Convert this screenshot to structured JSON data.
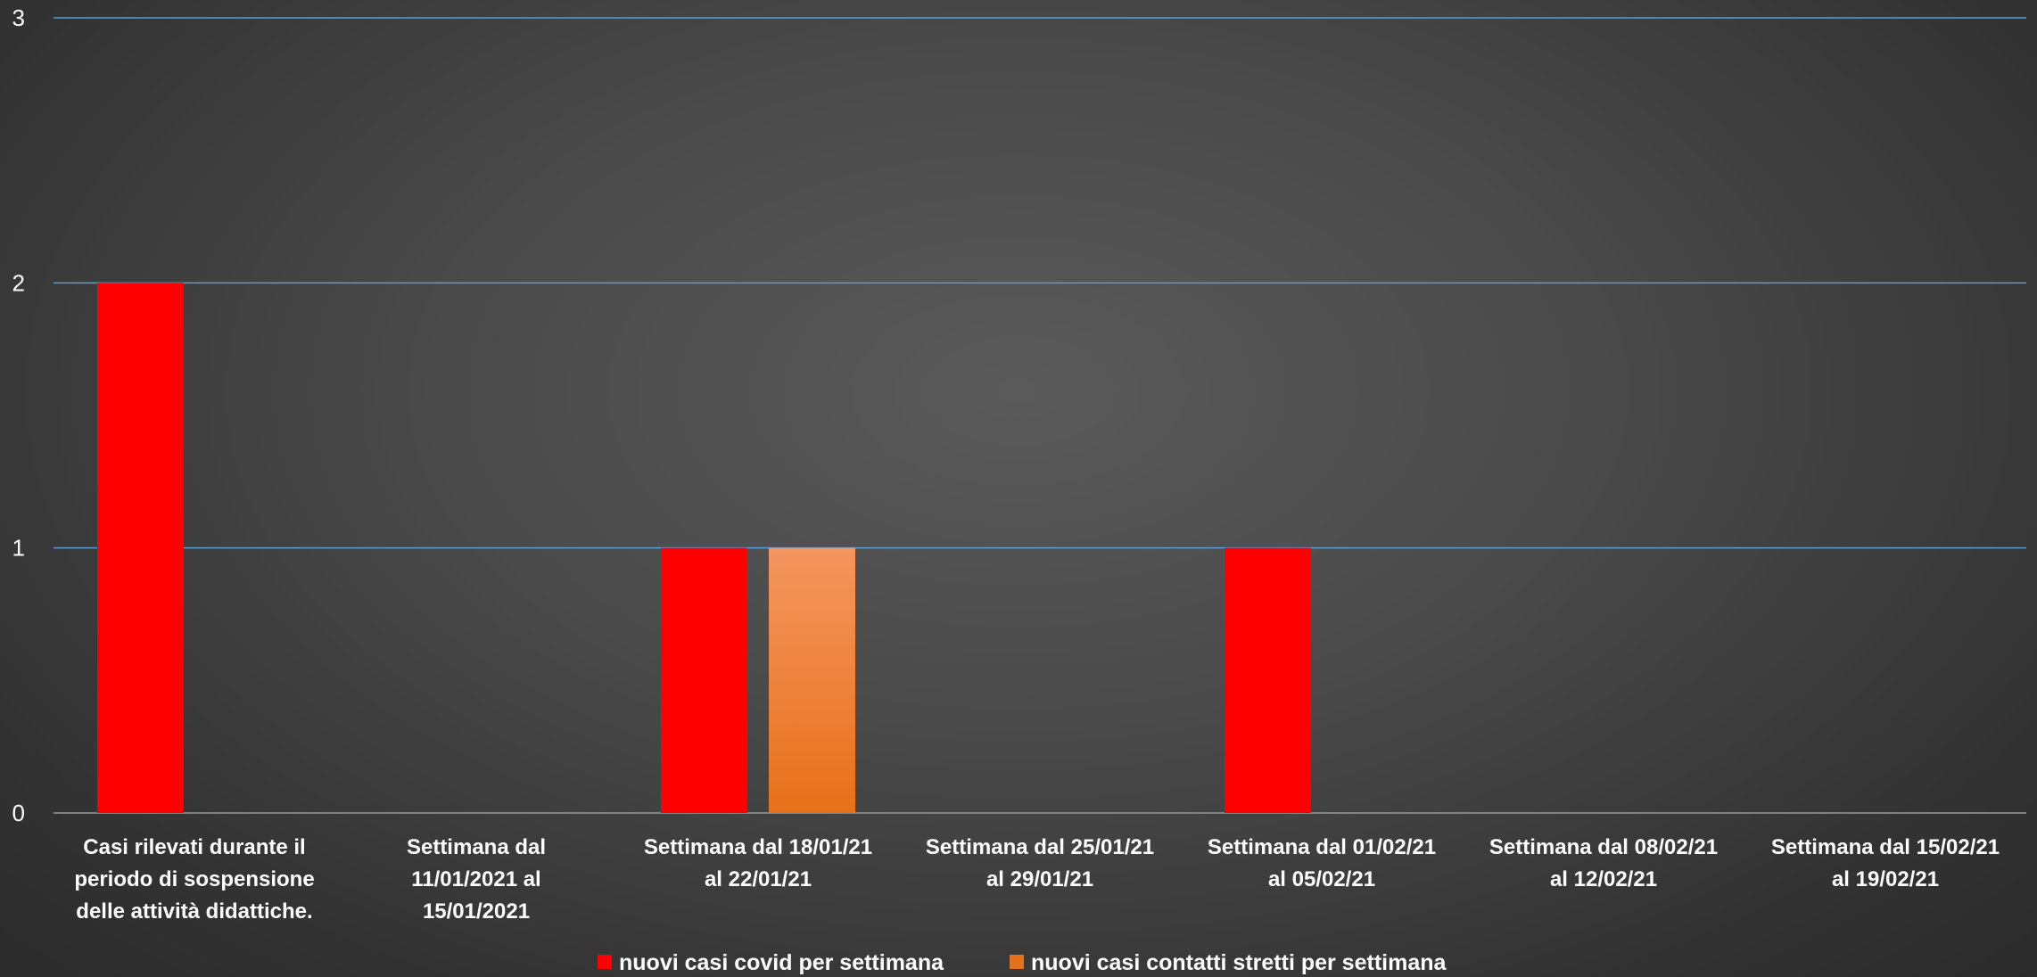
{
  "colors": {
    "gridline": "#5b9bd5",
    "axis": "#9a9a9a",
    "tick_text": "#ffffff",
    "series_covid": "#ff0000",
    "series_contatti_top": "#f4965f",
    "series_contatti_bottom": "#e8701a"
  },
  "chart_data": {
    "type": "bar",
    "title": "",
    "xlabel": "",
    "ylabel": "",
    "ylim": [
      0,
      3
    ],
    "yticks": [
      "0",
      "1",
      "2",
      "3"
    ],
    "grid": true,
    "legend_position": "bottom",
    "categories": [
      [
        "Casi rilevati durante il",
        "periodo di sospensione",
        "delle attività didattiche."
      ],
      [
        "Settimana dal",
        "11/01/2021 al",
        "15/01/2021"
      ],
      [
        "Settimana dal 18/01/21",
        "al 22/01/21"
      ],
      [
        "Settimana dal 25/01/21",
        "al 29/01/21"
      ],
      [
        "Settimana dal 01/02/21",
        "al 05/02/21"
      ],
      [
        "Settimana dal 08/02/21",
        "al 12/02/21"
      ],
      [
        "Settimana dal 15/02/21",
        "al 19/02/21"
      ]
    ],
    "series": [
      {
        "name": "nuovi casi covid per settimana",
        "values": [
          2,
          0,
          1,
          0,
          1,
          0,
          0
        ]
      },
      {
        "name": "nuovi casi contatti stretti per settimana",
        "values": [
          0,
          0,
          1,
          0,
          0,
          0,
          0
        ]
      }
    ]
  }
}
